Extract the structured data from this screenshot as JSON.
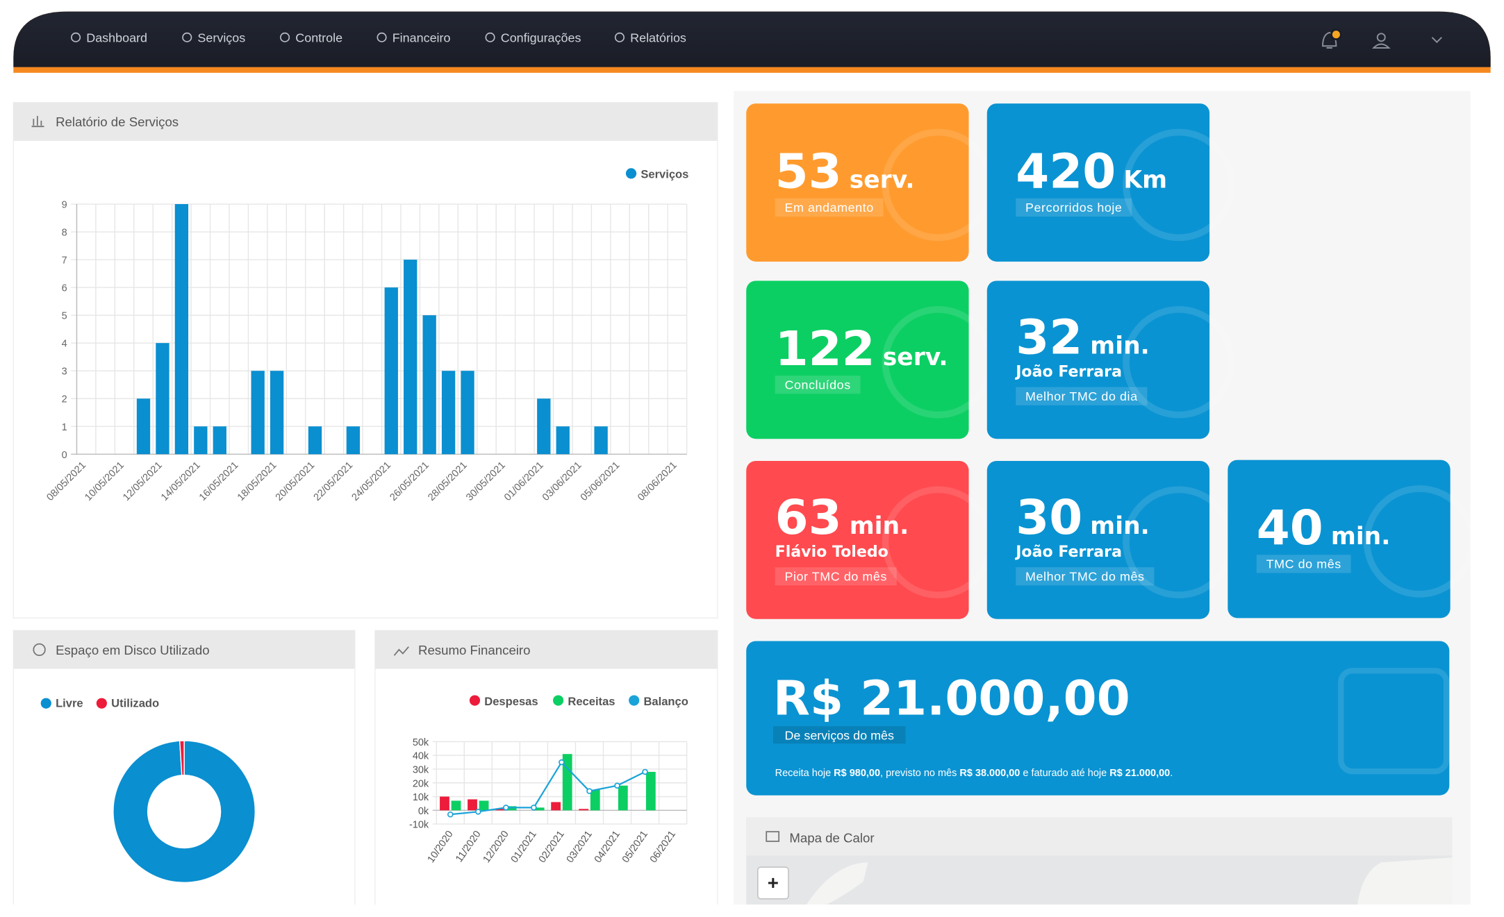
{
  "nav": {
    "items": [
      "Dashboard",
      "Serviços",
      "Controle",
      "Financeiro",
      "Configurações",
      "Relatórios"
    ]
  },
  "services_report": {
    "title": "Relatório de Serviços",
    "chart": {
      "type": "bar",
      "categories": [
        "08/05/2021",
        null,
        "10/05/2021",
        null,
        "12/05/2021",
        null,
        "14/05/2021",
        null,
        "16/05/2021",
        null,
        "18/05/2021",
        null,
        "20/05/2021",
        null,
        "22/05/2021",
        null,
        "24/05/2021",
        null,
        "26/05/2021",
        null,
        "28/05/2021",
        null,
        "30/05/2021",
        null,
        "01/06/2021",
        null,
        "03/06/2021",
        null,
        "05/06/2021",
        null,
        null,
        "08/06/2021"
      ],
      "series": [
        {
          "name": "Serviços",
          "color": "#0a8fd0",
          "values": [
            0,
            0,
            0,
            2,
            4,
            9,
            1,
            1,
            0,
            3,
            3,
            0,
            1,
            0,
            1,
            0,
            6,
            7,
            5,
            3,
            3,
            0,
            0,
            0,
            2,
            1,
            0,
            1,
            0,
            0,
            0,
            0
          ]
        }
      ],
      "ylim": [
        0,
        9
      ],
      "yticks": [
        0,
        1,
        2,
        3,
        4,
        5,
        6,
        7,
        8,
        9
      ],
      "grid": true
    }
  },
  "disk_usage": {
    "title": "Espaço em Disco Utilizado",
    "chart": {
      "type": "pie",
      "categories": [
        "Livre",
        "Utilizado"
      ],
      "values": [
        99,
        1
      ],
      "colors": [
        "#0a8fd0",
        "#ed1c3a"
      ]
    }
  },
  "financial_summary": {
    "title": "Resumo Financeiro",
    "chart": {
      "type": "bar",
      "categories": [
        "10/2020",
        "11/2020",
        "12/2020",
        "01/2021",
        "02/2021",
        "03/2021",
        "04/2021",
        "05/2021",
        "06/2021"
      ],
      "series": [
        {
          "name": "Despesas",
          "color": "#ed1c3a",
          "values": [
            10000,
            8000,
            1000,
            0,
            6000,
            1000,
            0,
            0,
            0
          ]
        },
        {
          "name": "Receitas",
          "color": "#0ccf63",
          "values": [
            7000,
            7000,
            3000,
            2000,
            41000,
            15000,
            18000,
            28000,
            0
          ]
        },
        {
          "name": "Balanço",
          "color": "#1aa3d8",
          "type": "line",
          "values": [
            -3000,
            -1000,
            2000,
            2000,
            35000,
            14000,
            18000,
            28000,
            null
          ]
        }
      ],
      "ylim": [
        -10000,
        50000
      ],
      "yticks": [
        {
          "value": -10000,
          "label": "-10k"
        },
        {
          "value": 0,
          "label": "0k"
        },
        {
          "value": 10000,
          "label": "10k"
        },
        {
          "value": 20000,
          "label": "20k"
        },
        {
          "value": 30000,
          "label": "30k"
        },
        {
          "value": 40000,
          "label": "40k"
        },
        {
          "value": 50000,
          "label": "50k"
        }
      ],
      "grid": true
    }
  },
  "cards": [
    {
      "value": 53,
      "unit": "serv.",
      "label": "Em andamento",
      "color": "#ff9b2e"
    },
    {
      "value": 420,
      "unit": "Km",
      "label": "Percorridos hoje",
      "color": "#0a93d2"
    },
    {
      "value": 122,
      "unit": "serv.",
      "label": "Concluídos",
      "color": "#0ccf63"
    },
    {
      "value": 32,
      "unit": "min.",
      "name": "João Ferrara",
      "label": "Melhor TMC do dia",
      "color": "#0a93d2"
    },
    {
      "value": 63,
      "unit": "min.",
      "name": "Flávio Toledo",
      "label": "Pior TMC do mês",
      "color": "#ff4a4f"
    },
    {
      "value": 30,
      "unit": "min.",
      "name": "João Ferrara",
      "label": "Melhor TMC do mês",
      "color": "#0a93d2"
    },
    {
      "value": 40,
      "unit": "min.",
      "label": "TMC do mês",
      "color": "#0a93d2"
    }
  ],
  "revenue_card": {
    "value": "R$ 21.000,00",
    "label": "De serviços do mês",
    "color": "#0a93d2",
    "summary": [
      "Receita hoje ",
      "R$ 980,00",
      ", previsto no mês ",
      "R$ 38.000,00",
      " e faturado até hoje ",
      "R$ 21.000,00",
      "."
    ]
  },
  "heat_map": {
    "title": "Mapa de Calor",
    "zoom_in": "+"
  }
}
